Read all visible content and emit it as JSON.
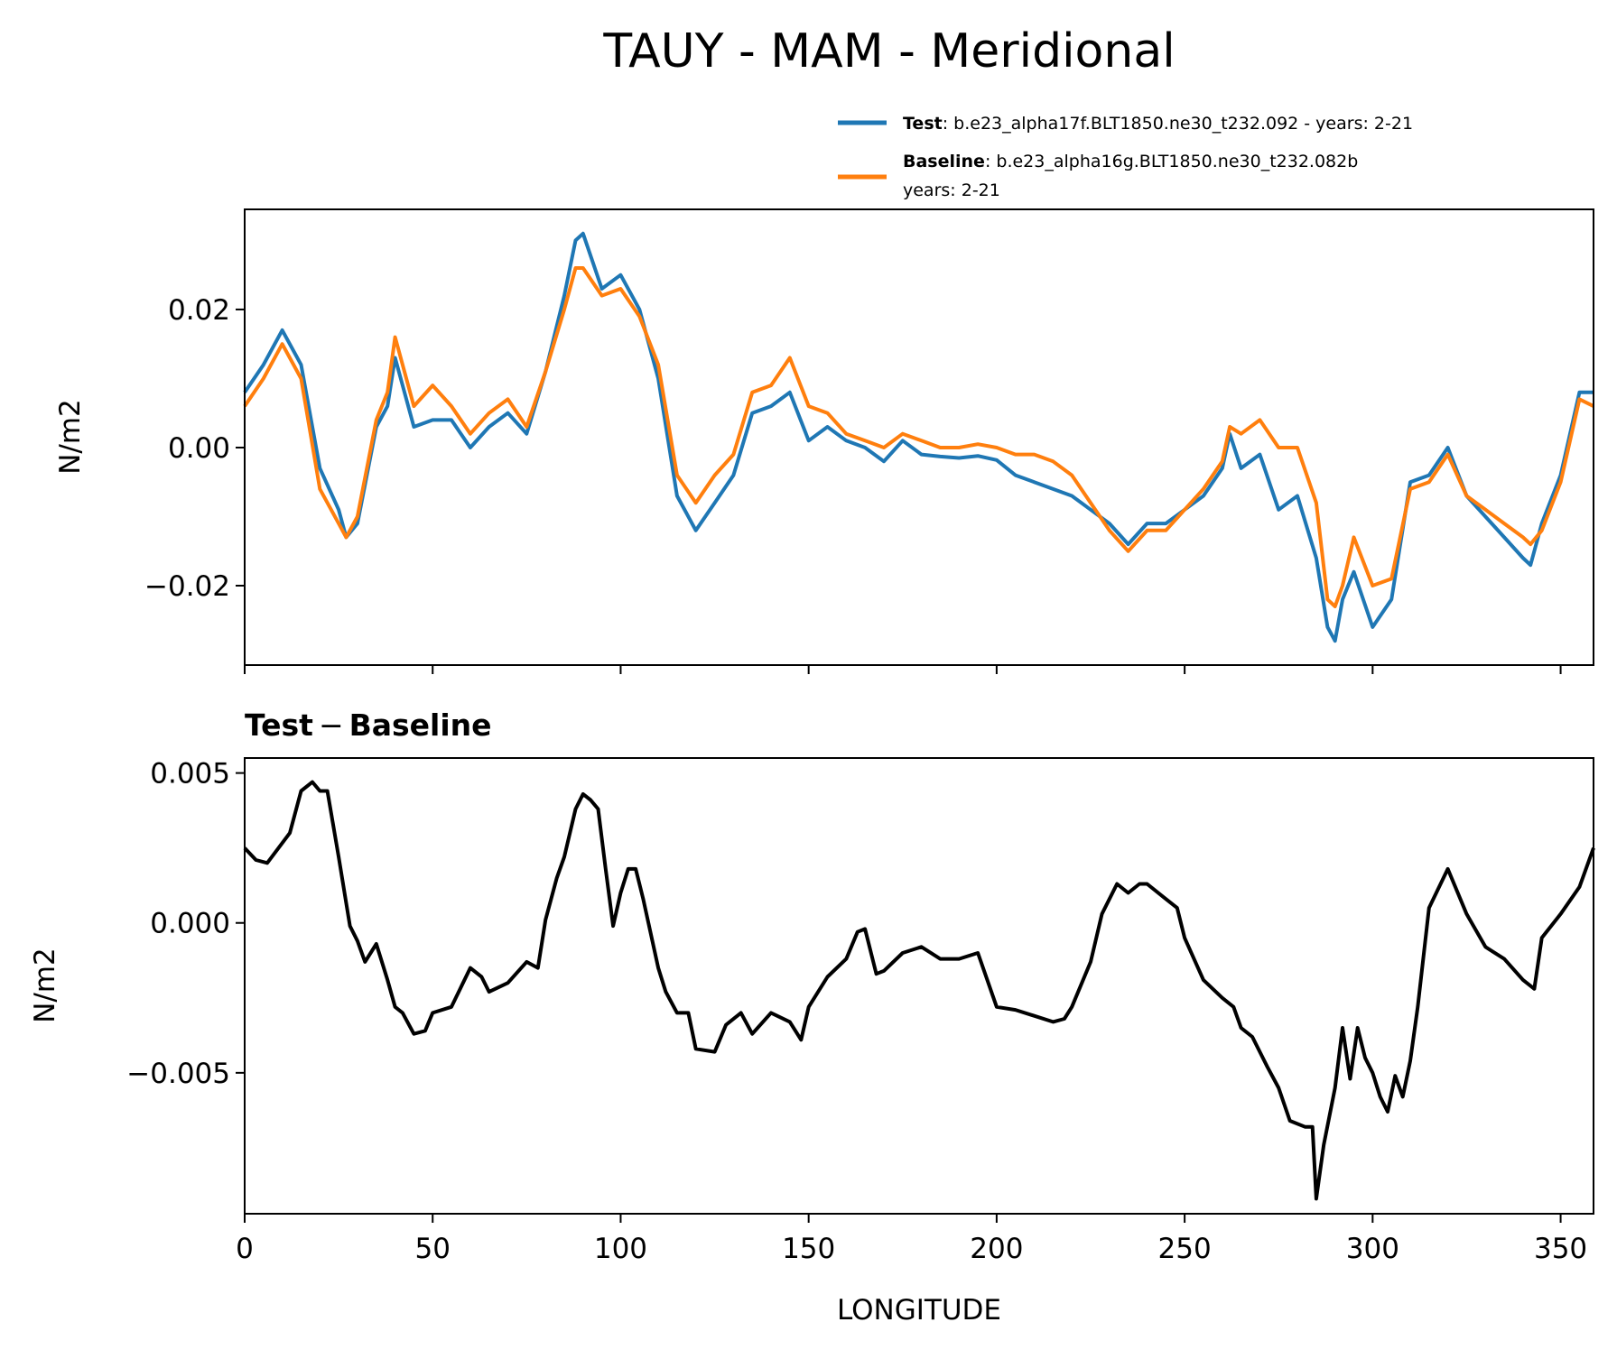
{
  "title": "TAUY - MAM - Meridional",
  "legend": {
    "test_name": "Test",
    "test_label": ": b.e23_alpha17f.BLT1850.ne30_t232.092 - years: 2-21",
    "baseline_name": "Baseline",
    "baseline_label": ": b.e23_alpha16g.BLT1850.ne30_t232.082b",
    "baseline_label_line2": "years: 2-21",
    "placement": "top-right, above top panel"
  },
  "colors": {
    "test": "#1f77b4",
    "baseline": "#ff7f0e",
    "difference": "#000000"
  },
  "top_panel": {
    "ylabel": "N/m2",
    "yticks": [
      "0.02",
      "0.00",
      "−0.02"
    ]
  },
  "bottom_panel": {
    "title_left": "Test",
    "title_op": "−",
    "title_right": "Baseline",
    "ylabel": "N/m2",
    "yticks": [
      "0.005",
      "0.000",
      "−0.005"
    ]
  },
  "xaxis": {
    "label": "LONGITUDE",
    "ticks": [
      "0",
      "50",
      "100",
      "150",
      "200",
      "250",
      "300",
      "350"
    ]
  },
  "chart_data": [
    {
      "type": "line",
      "title": "TAUY - MAM - Meridional",
      "xlabel": "",
      "ylabel": "N/m2",
      "xlim": [
        0,
        358.75
      ],
      "ylim": [
        -0.0315,
        0.0345
      ],
      "grid": false,
      "legend_position": "top-right",
      "series": [
        {
          "name": "Test",
          "color": "#1f77b4",
          "x": [
            0,
            5,
            10,
            15,
            20,
            25,
            27,
            30,
            35,
            38,
            40,
            45,
            50,
            55,
            60,
            65,
            70,
            75,
            80,
            85,
            88,
            90,
            95,
            100,
            105,
            110,
            115,
            120,
            125,
            130,
            135,
            140,
            145,
            150,
            155,
            160,
            165,
            170,
            175,
            180,
            185,
            190,
            195,
            200,
            205,
            210,
            215,
            220,
            225,
            230,
            235,
            240,
            245,
            250,
            255,
            260,
            262,
            265,
            270,
            275,
            280,
            285,
            288,
            290,
            292,
            295,
            300,
            305,
            310,
            315,
            320,
            325,
            330,
            335,
            340,
            342,
            345,
            350,
            355,
            358.75
          ],
          "values": [
            0.008,
            0.012,
            0.017,
            0.012,
            -0.003,
            -0.009,
            -0.013,
            -0.011,
            0.003,
            0.006,
            0.013,
            0.003,
            0.004,
            0.004,
            0.0,
            0.003,
            0.005,
            0.002,
            0.011,
            0.022,
            0.03,
            0.031,
            0.023,
            0.025,
            0.02,
            0.01,
            -0.007,
            -0.012,
            -0.008,
            -0.004,
            0.005,
            0.006,
            0.008,
            0.001,
            0.003,
            0.001,
            0.0,
            -0.002,
            0.001,
            -0.001,
            -0.0013,
            -0.0015,
            -0.0012,
            -0.0018,
            -0.004,
            -0.005,
            -0.006,
            -0.007,
            -0.009,
            -0.011,
            -0.014,
            -0.011,
            -0.011,
            -0.009,
            -0.007,
            -0.003,
            0.002,
            -0.003,
            -0.001,
            -0.009,
            -0.007,
            -0.016,
            -0.026,
            -0.028,
            -0.022,
            -0.018,
            -0.026,
            -0.022,
            -0.005,
            -0.004,
            0.0,
            -0.007,
            -0.01,
            -0.013,
            -0.016,
            -0.017,
            -0.011,
            -0.004,
            0.008,
            0.008
          ]
        },
        {
          "name": "Baseline",
          "color": "#ff7f0e",
          "x": [
            0,
            5,
            10,
            15,
            20,
            25,
            27,
            30,
            35,
            38,
            40,
            45,
            50,
            55,
            60,
            65,
            70,
            75,
            80,
            85,
            88,
            90,
            95,
            100,
            105,
            110,
            115,
            120,
            125,
            130,
            135,
            140,
            145,
            150,
            155,
            160,
            165,
            170,
            175,
            180,
            185,
            190,
            195,
            200,
            205,
            210,
            215,
            220,
            225,
            230,
            235,
            240,
            245,
            250,
            255,
            260,
            262,
            265,
            270,
            275,
            280,
            285,
            288,
            290,
            292,
            295,
            300,
            305,
            310,
            315,
            320,
            325,
            330,
            335,
            340,
            342,
            345,
            350,
            355,
            358.75
          ],
          "values": [
            0.006,
            0.01,
            0.015,
            0.01,
            -0.006,
            -0.011,
            -0.013,
            -0.01,
            0.004,
            0.008,
            0.016,
            0.006,
            0.009,
            0.006,
            0.002,
            0.005,
            0.007,
            0.003,
            0.011,
            0.02,
            0.026,
            0.026,
            0.022,
            0.023,
            0.019,
            0.012,
            -0.004,
            -0.008,
            -0.004,
            -0.001,
            0.008,
            0.009,
            0.013,
            0.006,
            0.005,
            0.002,
            0.001,
            0.0,
            0.002,
            0.001,
            0.0,
            0.0,
            0.0005,
            0.0,
            -0.001,
            -0.001,
            -0.002,
            -0.004,
            -0.008,
            -0.012,
            -0.015,
            -0.012,
            -0.012,
            -0.009,
            -0.006,
            -0.002,
            0.003,
            0.002,
            0.004,
            0.0,
            0.0,
            -0.008,
            -0.022,
            -0.023,
            -0.02,
            -0.013,
            -0.02,
            -0.019,
            -0.006,
            -0.005,
            -0.001,
            -0.007,
            -0.009,
            -0.011,
            -0.013,
            -0.014,
            -0.012,
            -0.005,
            0.007,
            0.006
          ]
        }
      ]
    },
    {
      "type": "line",
      "title": "Test − Baseline",
      "xlabel": "LONGITUDE",
      "ylabel": "N/m2",
      "xlim": [
        0,
        358.75
      ],
      "ylim": [
        -0.0097,
        0.0055
      ],
      "grid": false,
      "series": [
        {
          "name": "Test − Baseline",
          "color": "#000000",
          "x": [
            0,
            3,
            6,
            9,
            12,
            15,
            18,
            20,
            22,
            25,
            28,
            30,
            32,
            35,
            38,
            40,
            42,
            45,
            48,
            50,
            55,
            60,
            63,
            65,
            70,
            75,
            78,
            80,
            83,
            85,
            88,
            90,
            92,
            94,
            96,
            98,
            100,
            102,
            104,
            106,
            110,
            112,
            115,
            118,
            120,
            125,
            128,
            132,
            135,
            140,
            145,
            148,
            150,
            155,
            160,
            163,
            165,
            168,
            170,
            175,
            180,
            185,
            190,
            195,
            200,
            205,
            210,
            215,
            218,
            220,
            225,
            228,
            232,
            235,
            238,
            240,
            245,
            248,
            250,
            255,
            260,
            263,
            265,
            268,
            272,
            275,
            278,
            282,
            284,
            285,
            287,
            290,
            292,
            294,
            296,
            298,
            300,
            302,
            304,
            306,
            308,
            310,
            312,
            315,
            320,
            325,
            330,
            335,
            340,
            343,
            345,
            350,
            355,
            358.75
          ],
          "values": [
            0.0025,
            0.0021,
            0.002,
            0.0025,
            0.003,
            0.0044,
            0.0047,
            0.0044,
            0.0044,
            0.0022,
            -0.0001,
            -0.0006,
            -0.0013,
            -0.0007,
            -0.0019,
            -0.0028,
            -0.003,
            -0.0037,
            -0.0036,
            -0.003,
            -0.0028,
            -0.0015,
            -0.0018,
            -0.0023,
            -0.002,
            -0.0013,
            -0.0015,
            0.0001,
            0.0015,
            0.0022,
            0.0038,
            0.0043,
            0.0041,
            0.0038,
            0.0018,
            -0.0001,
            0.001,
            0.0018,
            0.0018,
            0.0008,
            -0.0015,
            -0.0023,
            -0.003,
            -0.003,
            -0.0042,
            -0.0043,
            -0.0034,
            -0.003,
            -0.0037,
            -0.003,
            -0.0033,
            -0.0039,
            -0.0028,
            -0.0018,
            -0.0012,
            -0.0003,
            -0.0002,
            -0.0017,
            -0.0016,
            -0.001,
            -0.0008,
            -0.0012,
            -0.0012,
            -0.001,
            -0.0028,
            -0.0029,
            -0.0031,
            -0.0033,
            -0.0032,
            -0.0028,
            -0.0013,
            0.0003,
            0.0013,
            0.001,
            0.0013,
            0.0013,
            0.0008,
            0.0005,
            -0.0005,
            -0.0019,
            -0.0025,
            -0.0028,
            -0.0035,
            -0.0038,
            -0.0048,
            -0.0055,
            -0.0066,
            -0.0068,
            -0.0068,
            -0.0092,
            -0.0074,
            -0.0055,
            -0.0035,
            -0.0052,
            -0.0035,
            -0.0045,
            -0.005,
            -0.0058,
            -0.0063,
            -0.0051,
            -0.0058,
            -0.0046,
            -0.0028,
            0.0005,
            0.0018,
            0.0003,
            -0.0008,
            -0.0012,
            -0.0019,
            -0.0022,
            -0.0005,
            0.0003,
            0.0012,
            0.0025
          ]
        }
      ]
    }
  ]
}
